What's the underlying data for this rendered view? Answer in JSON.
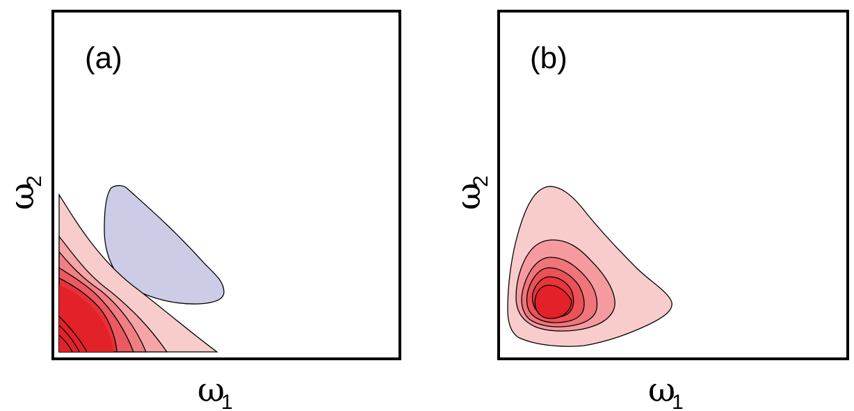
{
  "chart_data": [
    {
      "type": "contour",
      "panel_label": "(a)",
      "xlabel": {
        "symbol": "ω",
        "sub": "1"
      },
      "ylabel": {
        "symbol": "ω",
        "sub": "2"
      },
      "grid": false,
      "regions": [
        {
          "name": "positive-level-1",
          "color": "#f9cccc"
        },
        {
          "name": "positive-level-2",
          "color": "#f5a5a8"
        },
        {
          "name": "positive-level-3",
          "color": "#f07f84"
        },
        {
          "name": "positive-level-4",
          "color": "#ea5a60"
        },
        {
          "name": "positive-level-5",
          "color": "#e53238"
        },
        {
          "name": "positive-level-6",
          "color": "#e32128"
        },
        {
          "name": "negative-level-1",
          "color": "#cccce6"
        }
      ]
    },
    {
      "type": "contour",
      "panel_label": "(b)",
      "xlabel": {
        "symbol": "ω",
        "sub": "1"
      },
      "ylabel": {
        "symbol": "ω",
        "sub": "2"
      },
      "grid": false,
      "regions": [
        {
          "name": "positive-level-1",
          "color": "#f9cccc"
        },
        {
          "name": "positive-level-2",
          "color": "#f59ba0"
        },
        {
          "name": "positive-level-3",
          "color": "#ef757b"
        },
        {
          "name": "positive-level-4",
          "color": "#ea5258"
        },
        {
          "name": "positive-level-5",
          "color": "#e6363c"
        },
        {
          "name": "positive-level-6",
          "color": "#e32128"
        }
      ]
    }
  ]
}
